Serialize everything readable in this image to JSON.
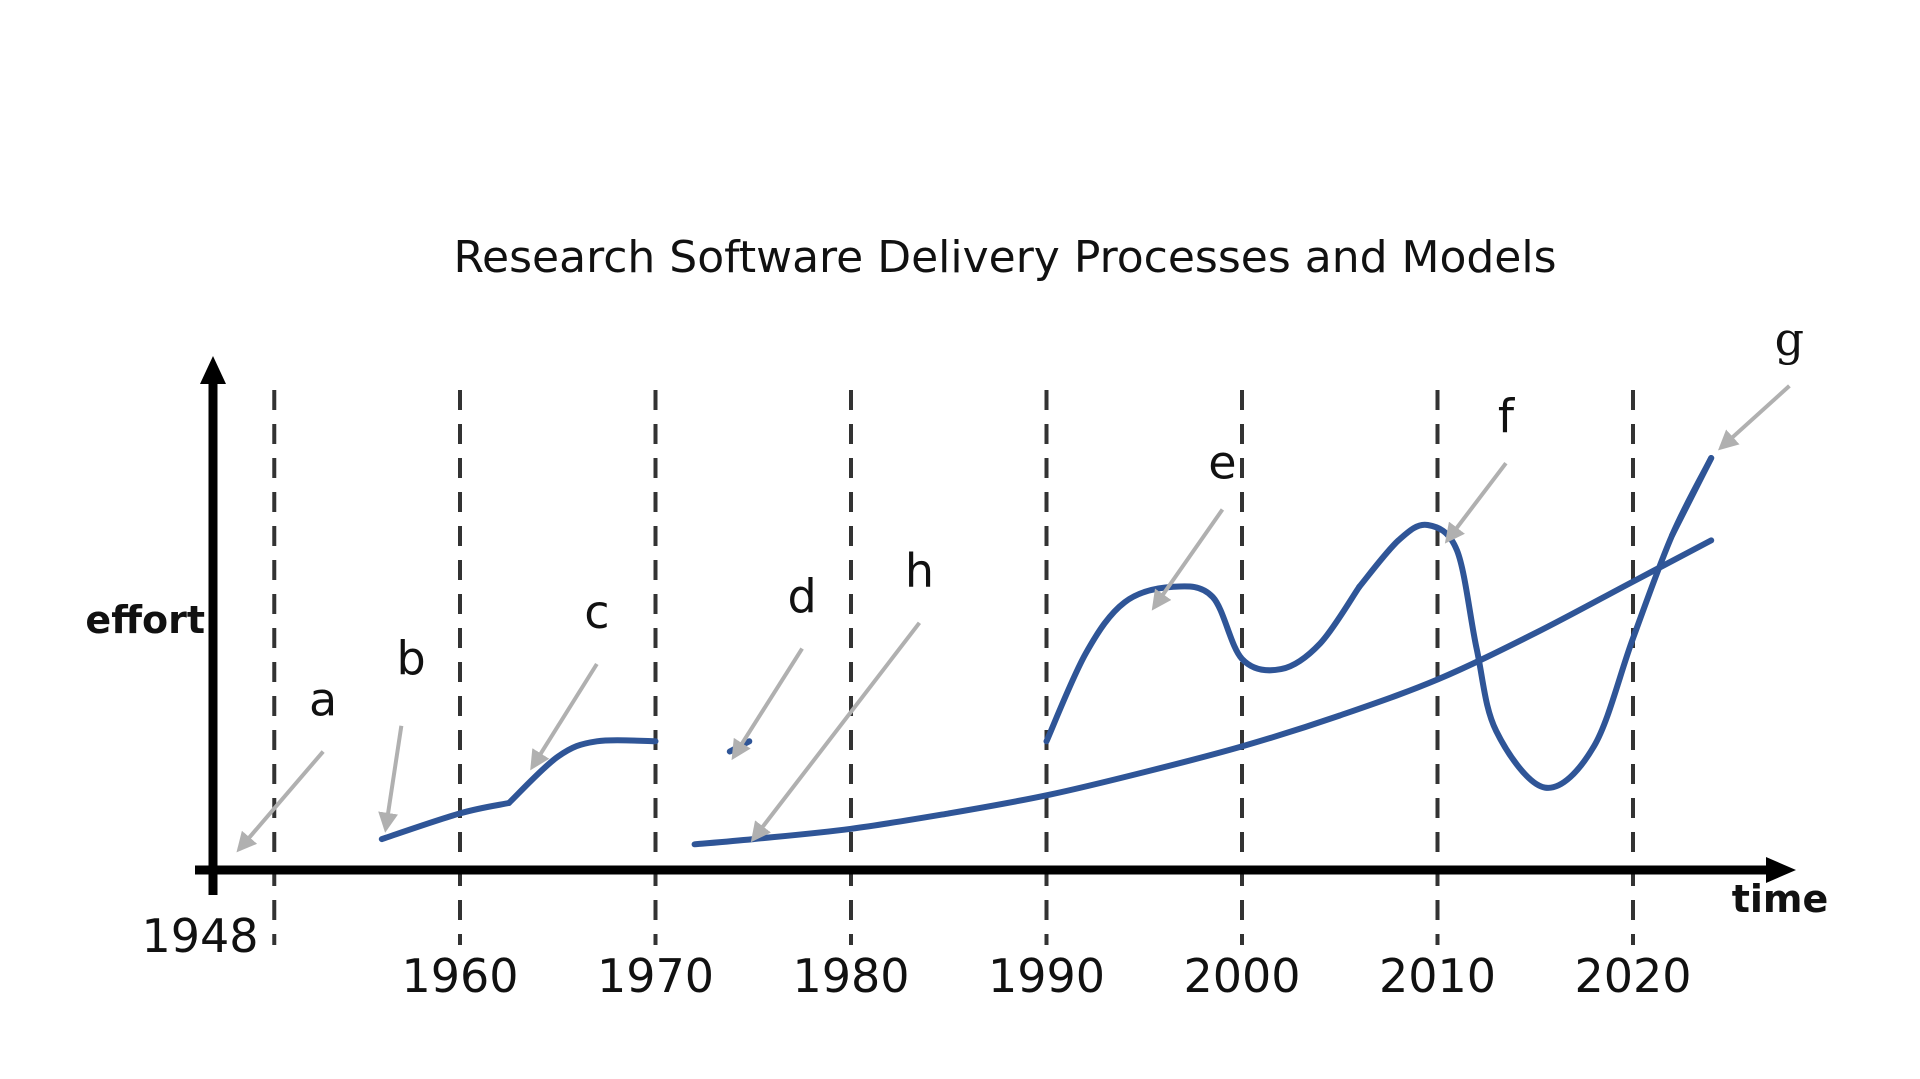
{
  "chart_data": {
    "type": "line",
    "title": "Research Software Delivery Processes and Models",
    "xlabel": "time",
    "ylabel": "effort",
    "xlim": [
      1945,
      2034
    ],
    "ylim": [
      0,
      100
    ],
    "grid": "vertical-dashed",
    "colors": {
      "curve": "#2f5597",
      "axis": "#000000",
      "grid": "#333333",
      "annotation_arrow": "#b0b0b0"
    },
    "tick_labels": [
      {
        "year": 1948,
        "label": "1948"
      },
      {
        "year": 1960,
        "label": "1960"
      },
      {
        "year": 1970,
        "label": "1970"
      },
      {
        "year": 1980,
        "label": "1980"
      },
      {
        "year": 1990,
        "label": "1990"
      },
      {
        "year": 2000,
        "label": "2000"
      },
      {
        "year": 2010,
        "label": "2010"
      },
      {
        "year": 2020,
        "label": "2020"
      }
    ],
    "gridlines_x": [
      1950.5,
      1960,
      1970,
      1980,
      1990,
      2000,
      2010,
      2020
    ],
    "series": [
      {
        "name": "b",
        "points": [
          [
            1956,
            6
          ],
          [
            1960,
            11
          ],
          [
            1962.5,
            13
          ]
        ]
      },
      {
        "name": "c",
        "points": [
          [
            1962.5,
            13
          ],
          [
            1965,
            22
          ],
          [
            1967,
            25
          ],
          [
            1970,
            25
          ]
        ]
      },
      {
        "name": "d",
        "points": [
          [
            1973.8,
            23
          ],
          [
            1974.8,
            25
          ]
        ]
      },
      {
        "name": "h",
        "points": [
          [
            1972,
            5
          ],
          [
            1975,
            6
          ],
          [
            1980,
            8
          ],
          [
            1985,
            11
          ],
          [
            1990,
            14.5
          ],
          [
            1995,
            19
          ],
          [
            2000,
            24
          ],
          [
            2005,
            30
          ],
          [
            2010,
            37
          ],
          [
            2015,
            46
          ],
          [
            2020,
            56
          ],
          [
            2024,
            64
          ]
        ]
      },
      {
        "name": "e",
        "points": [
          [
            1990,
            25
          ],
          [
            1992,
            42
          ],
          [
            1994,
            52
          ],
          [
            1996.5,
            55
          ],
          [
            1998.5,
            53
          ],
          [
            2000,
            41
          ],
          [
            2002,
            39
          ],
          [
            2004,
            44
          ],
          [
            2006,
            55
          ]
        ]
      },
      {
        "name": "f",
        "points": [
          [
            2006,
            55
          ],
          [
            2008,
            64
          ],
          [
            2009.5,
            67
          ],
          [
            2011,
            62
          ],
          [
            2012,
            43
          ],
          [
            2013,
            27
          ],
          [
            2015.5,
            16
          ],
          [
            2018,
            24
          ],
          [
            2020,
            45
          ],
          [
            2022,
            65
          ],
          [
            2024,
            80
          ]
        ]
      },
      {
        "name": "g",
        "points": [
          [
            2022,
            65
          ],
          [
            2024,
            80
          ]
        ]
      }
    ],
    "annotations": [
      {
        "label": "a",
        "text_at": [
          1953,
          30
        ],
        "arrow_from": [
          1953,
          23
        ],
        "arrow_to": [
          1948.7,
          4
        ]
      },
      {
        "label": "b",
        "text_at": [
          1957.5,
          38
        ],
        "arrow_from": [
          1957,
          28
        ],
        "arrow_to": [
          1956.2,
          8
        ]
      },
      {
        "label": "c",
        "text_at": [
          1967,
          47
        ],
        "arrow_from": [
          1967,
          40
        ],
        "arrow_to": [
          1963.7,
          20
        ]
      },
      {
        "label": "d",
        "text_at": [
          1977.5,
          50
        ],
        "arrow_from": [
          1977.5,
          43
        ],
        "arrow_to": [
          1974,
          22
        ]
      },
      {
        "label": "h",
        "text_at": [
          1983.5,
          55
        ],
        "arrow_from": [
          1983.5,
          48
        ],
        "arrow_to": [
          1975,
          6
        ]
      },
      {
        "label": "e",
        "text_at": [
          1999,
          76
        ],
        "arrow_from": [
          1999,
          70
        ],
        "arrow_to": [
          1995.5,
          51
        ]
      },
      {
        "label": "f",
        "text_at": [
          2013.5,
          85
        ],
        "arrow_from": [
          2013.5,
          79
        ],
        "arrow_to": [
          2010.5,
          64
        ]
      },
      {
        "label": "g",
        "text_at": [
          2028,
          100
        ],
        "arrow_from": [
          2028,
          94
        ],
        "arrow_to": [
          2024.5,
          82
        ]
      }
    ]
  }
}
